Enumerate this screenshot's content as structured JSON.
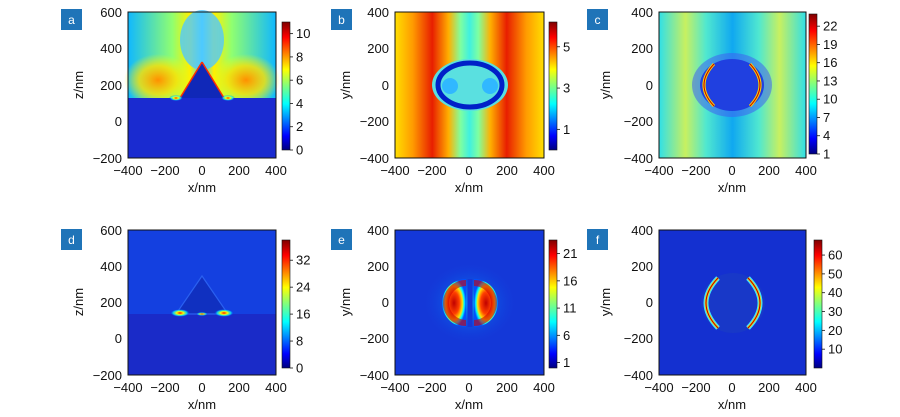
{
  "chart_data": [
    {
      "type": "heatmap",
      "panel_label": "a",
      "xlabel": "x/nm",
      "ylabel": "z/nm",
      "xlim": [
        -400,
        400
      ],
      "ylim": [
        -200,
        600
      ],
      "xticks": [
        "−400",
        "−200",
        "0",
        "200",
        "400"
      ],
      "yticks": [
        "600",
        "400",
        "200",
        "0",
        "−200"
      ],
      "colorbar": {
        "range": [
          0,
          11
        ],
        "ticks": [
          "10",
          "8",
          "6",
          "4",
          "2",
          "0"
        ],
        "values": [
          10,
          8,
          6,
          4,
          2,
          0
        ]
      },
      "field_pattern": "side-view triangle on substrate"
    },
    {
      "type": "heatmap",
      "panel_label": "b",
      "xlabel": "x/nm",
      "ylabel": "y/nm",
      "xlim": [
        -400,
        400
      ],
      "ylim": [
        -400,
        400
      ],
      "xticks": [
        "−400",
        "−200",
        "0",
        "200",
        "400"
      ],
      "yticks": [
        "400",
        "200",
        "0",
        "−200",
        "−400"
      ],
      "colorbar": {
        "range": [
          0,
          6.2
        ],
        "ticks": [
          "5",
          "3",
          "1"
        ],
        "values": [
          5,
          3,
          1
        ]
      },
      "field_pattern": "top-view disk, standing-wave lobes"
    },
    {
      "type": "heatmap",
      "panel_label": "c",
      "xlabel": "x/nm",
      "ylabel": "y/nm",
      "xlim": [
        -400,
        400
      ],
      "ylim": [
        -400,
        400
      ],
      "xticks": [
        "−400",
        "−200",
        "0",
        "200",
        "400"
      ],
      "yticks": [
        "400",
        "200",
        "0",
        "−200",
        "−400"
      ],
      "colorbar": {
        "range": [
          1,
          24
        ],
        "ticks": [
          "22",
          "19",
          "16",
          "13",
          "10",
          "7",
          "4",
          "1"
        ],
        "values": [
          22,
          19,
          16,
          13,
          10,
          7,
          4,
          1
        ]
      },
      "field_pattern": "top-view disk, crescent edge hot spots"
    },
    {
      "type": "heatmap",
      "panel_label": "d",
      "xlabel": "x/nm",
      "ylabel": "z/nm",
      "xlim": [
        -400,
        400
      ],
      "ylim": [
        -200,
        600
      ],
      "xticks": [
        "−400",
        "−200",
        "0",
        "200",
        "400"
      ],
      "yticks": [
        "600",
        "400",
        "200",
        "0",
        "−200"
      ],
      "colorbar": {
        "range": [
          0,
          38
        ],
        "ticks": [
          "32",
          "24",
          "16",
          "8",
          "0"
        ],
        "values": [
          32,
          24,
          16,
          8,
          0
        ]
      },
      "field_pattern": "side-view triangle, base corner hot spots"
    },
    {
      "type": "heatmap",
      "panel_label": "e",
      "xlabel": "x/nm",
      "ylabel": "y/nm",
      "xlim": [
        -400,
        400
      ],
      "ylim": [
        -400,
        400
      ],
      "xticks": [
        "−400",
        "−200",
        "0",
        "200",
        "400"
      ],
      "yticks": [
        "400",
        "200",
        "0",
        "−200",
        "−400"
      ],
      "colorbar": {
        "range": [
          0,
          23.5
        ],
        "ticks": [
          "21",
          "16",
          "11",
          "6",
          "1"
        ],
        "values": [
          21,
          16,
          11,
          6,
          1
        ]
      },
      "field_pattern": "top-view disk, two half-disk lobes"
    },
    {
      "type": "heatmap",
      "panel_label": "f",
      "xlabel": "x/nm",
      "ylabel": "y/nm",
      "xlim": [
        -400,
        400
      ],
      "ylim": [
        -400,
        400
      ],
      "xticks": [
        "−400",
        "−200",
        "0",
        "200",
        "400"
      ],
      "yticks": [
        "400",
        "200",
        "0",
        "−200",
        "−400"
      ],
      "colorbar": {
        "range": [
          0,
          68
        ],
        "ticks": [
          "60",
          "50",
          "40",
          "30",
          "20",
          "10"
        ],
        "values": [
          60,
          50,
          40,
          30,
          20,
          10
        ]
      },
      "field_pattern": "top-view disk, thin crescent rim"
    }
  ],
  "colors": {
    "badge": "#1f74b8",
    "jet": [
      "#00007f",
      "#0000ff",
      "#007fff",
      "#00ffff",
      "#7fff7f",
      "#ffff00",
      "#ff7f00",
      "#ff0000",
      "#7f0000"
    ]
  }
}
